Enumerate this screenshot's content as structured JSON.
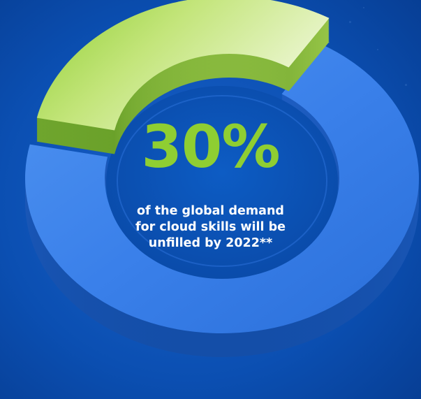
{
  "colors": {
    "background": "#0a4eb0",
    "accent_green": "#8fce32",
    "ring_blue": "#2f7be8",
    "text_white": "#ffffff"
  },
  "chart_data": {
    "type": "pie",
    "style": "donut-3d",
    "values": [
      30,
      70
    ],
    "highlight_value": "30%",
    "annotation_lines": [
      "of the global demand",
      "for cloud skills will be",
      "unfilled by 2022**"
    ],
    "segment_colors": [
      "#8fce32",
      "#2f7be8"
    ]
  }
}
